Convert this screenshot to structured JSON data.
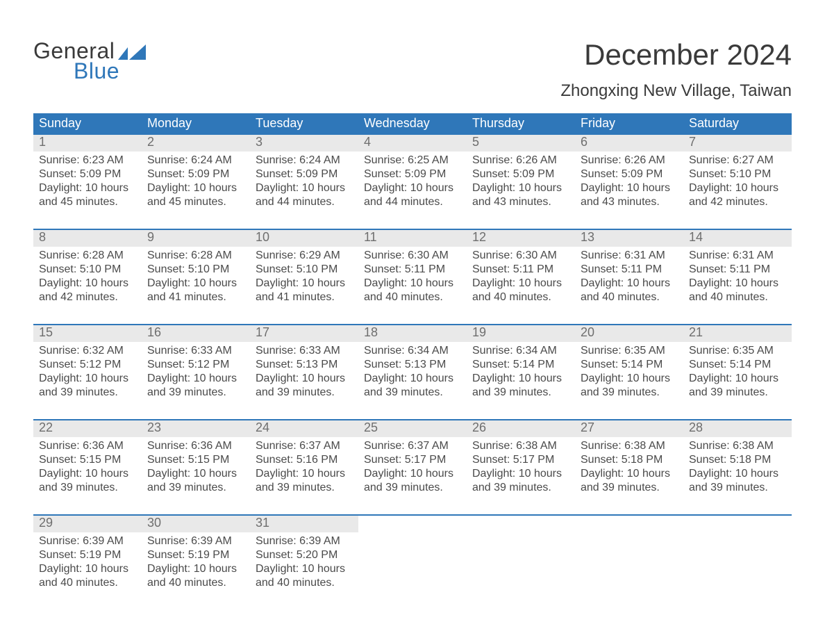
{
  "logo": {
    "general": "General",
    "blue": "Blue",
    "flag_color": "#2f77b9"
  },
  "title": "December 2024",
  "location": "Zhongxing New Village, Taiwan",
  "colors": {
    "header_bg": "#2f77b9",
    "header_text": "#ffffff",
    "daynum_bg": "#e9e9e9",
    "daynum_text": "#6e6e6e",
    "body_text": "#4a4a4a",
    "rule": "#2f77b9",
    "page_bg": "#ffffff"
  },
  "day_names": [
    "Sunday",
    "Monday",
    "Tuesday",
    "Wednesday",
    "Thursday",
    "Friday",
    "Saturday"
  ],
  "weeks": [
    [
      {
        "n": "1",
        "sr": "Sunrise: 6:23 AM",
        "ss": "Sunset: 5:09 PM",
        "d1": "Daylight: 10 hours",
        "d2": "and 45 minutes."
      },
      {
        "n": "2",
        "sr": "Sunrise: 6:24 AM",
        "ss": "Sunset: 5:09 PM",
        "d1": "Daylight: 10 hours",
        "d2": "and 45 minutes."
      },
      {
        "n": "3",
        "sr": "Sunrise: 6:24 AM",
        "ss": "Sunset: 5:09 PM",
        "d1": "Daylight: 10 hours",
        "d2": "and 44 minutes."
      },
      {
        "n": "4",
        "sr": "Sunrise: 6:25 AM",
        "ss": "Sunset: 5:09 PM",
        "d1": "Daylight: 10 hours",
        "d2": "and 44 minutes."
      },
      {
        "n": "5",
        "sr": "Sunrise: 6:26 AM",
        "ss": "Sunset: 5:09 PM",
        "d1": "Daylight: 10 hours",
        "d2": "and 43 minutes."
      },
      {
        "n": "6",
        "sr": "Sunrise: 6:26 AM",
        "ss": "Sunset: 5:09 PM",
        "d1": "Daylight: 10 hours",
        "d2": "and 43 minutes."
      },
      {
        "n": "7",
        "sr": "Sunrise: 6:27 AM",
        "ss": "Sunset: 5:10 PM",
        "d1": "Daylight: 10 hours",
        "d2": "and 42 minutes."
      }
    ],
    [
      {
        "n": "8",
        "sr": "Sunrise: 6:28 AM",
        "ss": "Sunset: 5:10 PM",
        "d1": "Daylight: 10 hours",
        "d2": "and 42 minutes."
      },
      {
        "n": "9",
        "sr": "Sunrise: 6:28 AM",
        "ss": "Sunset: 5:10 PM",
        "d1": "Daylight: 10 hours",
        "d2": "and 41 minutes."
      },
      {
        "n": "10",
        "sr": "Sunrise: 6:29 AM",
        "ss": "Sunset: 5:10 PM",
        "d1": "Daylight: 10 hours",
        "d2": "and 41 minutes."
      },
      {
        "n": "11",
        "sr": "Sunrise: 6:30 AM",
        "ss": "Sunset: 5:11 PM",
        "d1": "Daylight: 10 hours",
        "d2": "and 40 minutes."
      },
      {
        "n": "12",
        "sr": "Sunrise: 6:30 AM",
        "ss": "Sunset: 5:11 PM",
        "d1": "Daylight: 10 hours",
        "d2": "and 40 minutes."
      },
      {
        "n": "13",
        "sr": "Sunrise: 6:31 AM",
        "ss": "Sunset: 5:11 PM",
        "d1": "Daylight: 10 hours",
        "d2": "and 40 minutes."
      },
      {
        "n": "14",
        "sr": "Sunrise: 6:31 AM",
        "ss": "Sunset: 5:11 PM",
        "d1": "Daylight: 10 hours",
        "d2": "and 40 minutes."
      }
    ],
    [
      {
        "n": "15",
        "sr": "Sunrise: 6:32 AM",
        "ss": "Sunset: 5:12 PM",
        "d1": "Daylight: 10 hours",
        "d2": "and 39 minutes."
      },
      {
        "n": "16",
        "sr": "Sunrise: 6:33 AM",
        "ss": "Sunset: 5:12 PM",
        "d1": "Daylight: 10 hours",
        "d2": "and 39 minutes."
      },
      {
        "n": "17",
        "sr": "Sunrise: 6:33 AM",
        "ss": "Sunset: 5:13 PM",
        "d1": "Daylight: 10 hours",
        "d2": "and 39 minutes."
      },
      {
        "n": "18",
        "sr": "Sunrise: 6:34 AM",
        "ss": "Sunset: 5:13 PM",
        "d1": "Daylight: 10 hours",
        "d2": "and 39 minutes."
      },
      {
        "n": "19",
        "sr": "Sunrise: 6:34 AM",
        "ss": "Sunset: 5:14 PM",
        "d1": "Daylight: 10 hours",
        "d2": "and 39 minutes."
      },
      {
        "n": "20",
        "sr": "Sunrise: 6:35 AM",
        "ss": "Sunset: 5:14 PM",
        "d1": "Daylight: 10 hours",
        "d2": "and 39 minutes."
      },
      {
        "n": "21",
        "sr": "Sunrise: 6:35 AM",
        "ss": "Sunset: 5:14 PM",
        "d1": "Daylight: 10 hours",
        "d2": "and 39 minutes."
      }
    ],
    [
      {
        "n": "22",
        "sr": "Sunrise: 6:36 AM",
        "ss": "Sunset: 5:15 PM",
        "d1": "Daylight: 10 hours",
        "d2": "and 39 minutes."
      },
      {
        "n": "23",
        "sr": "Sunrise: 6:36 AM",
        "ss": "Sunset: 5:15 PM",
        "d1": "Daylight: 10 hours",
        "d2": "and 39 minutes."
      },
      {
        "n": "24",
        "sr": "Sunrise: 6:37 AM",
        "ss": "Sunset: 5:16 PM",
        "d1": "Daylight: 10 hours",
        "d2": "and 39 minutes."
      },
      {
        "n": "25",
        "sr": "Sunrise: 6:37 AM",
        "ss": "Sunset: 5:17 PM",
        "d1": "Daylight: 10 hours",
        "d2": "and 39 minutes."
      },
      {
        "n": "26",
        "sr": "Sunrise: 6:38 AM",
        "ss": "Sunset: 5:17 PM",
        "d1": "Daylight: 10 hours",
        "d2": "and 39 minutes."
      },
      {
        "n": "27",
        "sr": "Sunrise: 6:38 AM",
        "ss": "Sunset: 5:18 PM",
        "d1": "Daylight: 10 hours",
        "d2": "and 39 minutes."
      },
      {
        "n": "28",
        "sr": "Sunrise: 6:38 AM",
        "ss": "Sunset: 5:18 PM",
        "d1": "Daylight: 10 hours",
        "d2": "and 39 minutes."
      }
    ],
    [
      {
        "n": "29",
        "sr": "Sunrise: 6:39 AM",
        "ss": "Sunset: 5:19 PM",
        "d1": "Daylight: 10 hours",
        "d2": "and 40 minutes."
      },
      {
        "n": "30",
        "sr": "Sunrise: 6:39 AM",
        "ss": "Sunset: 5:19 PM",
        "d1": "Daylight: 10 hours",
        "d2": "and 40 minutes."
      },
      {
        "n": "31",
        "sr": "Sunrise: 6:39 AM",
        "ss": "Sunset: 5:20 PM",
        "d1": "Daylight: 10 hours",
        "d2": "and 40 minutes."
      },
      null,
      null,
      null,
      null
    ]
  ]
}
